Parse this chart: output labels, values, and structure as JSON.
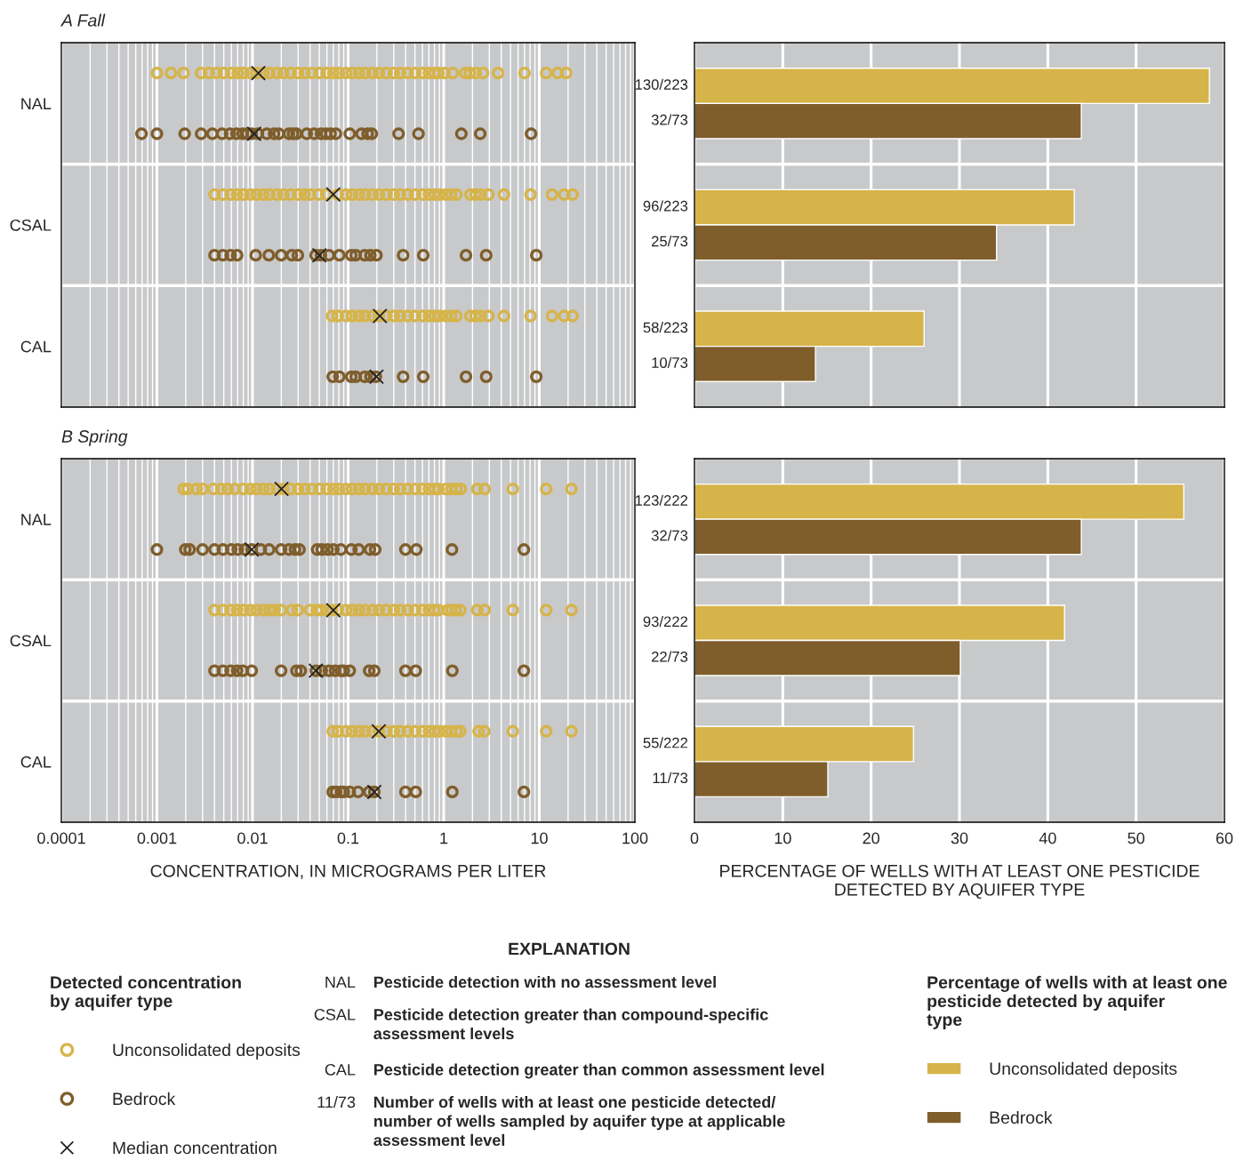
{
  "chart_data": [
    {
      "type": "scatter",
      "title": "A Fall",
      "orientation": "horizontal",
      "log": "x",
      "grid": "x",
      "tick_labels": "y",
      "legend": "bottom left",
      "legend_title": "Detected concentration\nby aquifer type",
      "categories": [
        "NAL",
        "CSAL",
        "CAL"
      ],
      "xlim": [
        0.0001,
        100
      ],
      "xticks": [
        0.0001,
        0.001,
        0.01,
        0.1,
        1,
        10,
        100
      ],
      "series": [
        {
          "name": "Unconsolidated deposits",
          "color": "#d6b44a",
          "marker": "circle",
          "values": [
            0.001,
            0.0014,
            0.0019,
            0.0029,
            0.0035,
            0.0042,
            0.005,
            0.006,
            0.007,
            0.008,
            0.0095,
            0.011,
            0.013,
            0.015,
            0.018,
            0.021,
            0.025,
            0.03,
            0.035,
            0.042,
            0.05,
            0.06,
            0.07,
            0.08,
            0.095,
            0.11,
            0.13,
            0.15,
            0.18,
            0.21,
            0.25,
            0.3,
            0.35,
            0.42,
            0.5,
            0.6,
            0.7,
            0.8,
            0.88,
            1.02,
            1.24,
            1.68,
            1.87,
            2.16,
            2.58,
            3.7,
            7.0,
            11.8,
            15.6,
            19.1,
            0.004,
            0.0049,
            0.0059,
            0.0069,
            0.008,
            0.0095,
            0.011,
            0.013,
            0.015,
            0.018,
            0.021,
            0.025,
            0.03,
            0.035,
            0.04,
            0.049,
            0.059,
            0.078,
            0.095,
            0.11,
            0.13,
            0.15,
            0.18,
            0.21,
            0.25,
            0.3,
            0.35,
            0.42,
            0.5,
            0.6,
            0.7,
            0.8,
            0.9,
            1.05,
            1.2,
            1.36,
            1.9,
            2.16,
            2.44,
            2.94,
            4.27,
            8.1,
            13.6,
            18.2,
            22.3,
            0.068,
            0.078,
            0.095,
            0.11,
            0.13,
            0.15,
            0.18,
            0.21,
            0.25,
            0.3,
            0.35,
            0.42,
            0.5,
            0.6,
            0.7,
            0.8,
            0.9,
            1.05,
            1.2,
            1.36,
            1.9,
            2.16,
            2.44,
            2.94,
            4.27,
            8.1,
            13.6,
            18.2,
            22.3
          ],
          "x": [
            "NAL",
            "NAL",
            "NAL",
            "NAL",
            "NAL",
            "NAL",
            "NAL",
            "NAL",
            "NAL",
            "NAL",
            "NAL",
            "NAL",
            "NAL",
            "NAL",
            "NAL",
            "NAL",
            "NAL",
            "NAL",
            "NAL",
            "NAL",
            "NAL",
            "NAL",
            "NAL",
            "NAL",
            "NAL",
            "NAL",
            "NAL",
            "NAL",
            "NAL",
            "NAL",
            "NAL",
            "NAL",
            "NAL",
            "NAL",
            "NAL",
            "NAL",
            "NAL",
            "NAL",
            "NAL",
            "NAL",
            "NAL",
            "NAL",
            "NAL",
            "NAL",
            "NAL",
            "NAL",
            "NAL",
            "NAL",
            "NAL",
            "NAL",
            "CSAL",
            "CSAL",
            "CSAL",
            "CSAL",
            "CSAL",
            "CSAL",
            "CSAL",
            "CSAL",
            "CSAL",
            "CSAL",
            "CSAL",
            "CSAL",
            "CSAL",
            "CSAL",
            "CSAL",
            "CSAL",
            "CSAL",
            "CSAL",
            "CSAL",
            "CSAL",
            "CSAL",
            "CSAL",
            "CSAL",
            "CSAL",
            "CSAL",
            "CSAL",
            "CSAL",
            "CSAL",
            "CSAL",
            "CSAL",
            "CSAL",
            "CSAL",
            "CSAL",
            "CSAL",
            "CSAL",
            "CSAL",
            "CSAL",
            "CSAL",
            "CSAL",
            "CSAL",
            "CSAL",
            "CSAL",
            "CSAL",
            "CSAL",
            "CSAL",
            "CAL",
            "CAL",
            "CAL",
            "CAL",
            "CAL",
            "CAL",
            "CAL",
            "CAL",
            "CAL",
            "CAL",
            "CAL",
            "CAL",
            "CAL",
            "CAL",
            "CAL",
            "CAL",
            "CAL",
            "CAL",
            "CAL",
            "CAL",
            "CAL",
            "CAL",
            "CAL",
            "CAL",
            "CAL",
            "CAL",
            "CAL",
            "CAL",
            "CAL"
          ]
        },
        {
          "name": "Bedrock",
          "color": "#7f5e2c",
          "marker": "circle",
          "values": [
            0.00069,
            0.001,
            0.00195,
            0.0029,
            0.0038,
            0.0048,
            0.0058,
            0.0068,
            0.0079,
            0.0088,
            0.0098,
            0.0114,
            0.0141,
            0.0168,
            0.0188,
            0.024,
            0.0265,
            0.0288,
            0.0369,
            0.0441,
            0.052,
            0.0588,
            0.0655,
            0.0745,
            0.104,
            0.138,
            0.16,
            0.177,
            0.337,
            0.545,
            1.53,
            2.41,
            8.2,
            0.004,
            0.0049,
            0.0059,
            0.0069,
            0.0108,
            0.0148,
            0.0199,
            0.0258,
            0.0298,
            0.0457,
            0.052,
            0.063,
            0.081,
            0.108,
            0.12,
            0.149,
            0.171,
            0.198,
            0.376,
            0.611,
            1.71,
            2.78,
            9.3,
            0.069,
            0.081,
            0.108,
            0.12,
            0.149,
            0.171,
            0.195,
            0.376,
            0.611,
            1.71,
            2.78,
            9.3
          ],
          "x": [
            "NAL",
            "NAL",
            "NAL",
            "NAL",
            "NAL",
            "NAL",
            "NAL",
            "NAL",
            "NAL",
            "NAL",
            "NAL",
            "NAL",
            "NAL",
            "NAL",
            "NAL",
            "NAL",
            "NAL",
            "NAL",
            "NAL",
            "NAL",
            "NAL",
            "NAL",
            "NAL",
            "NAL",
            "NAL",
            "NAL",
            "NAL",
            "NAL",
            "NAL",
            "NAL",
            "NAL",
            "NAL",
            "NAL",
            "CSAL",
            "CSAL",
            "CSAL",
            "CSAL",
            "CSAL",
            "CSAL",
            "CSAL",
            "CSAL",
            "CSAL",
            "CSAL",
            "CSAL",
            "CSAL",
            "CSAL",
            "CSAL",
            "CSAL",
            "CSAL",
            "CSAL",
            "CSAL",
            "CSAL",
            "CSAL",
            "CSAL",
            "CSAL",
            "CSAL",
            "CAL",
            "CAL",
            "CAL",
            "CAL",
            "CAL",
            "CAL",
            "CAL",
            "CAL",
            "CAL",
            "CAL",
            "CAL",
            "CAL"
          ]
        },
        {
          "name": "Median concentration",
          "color": "#222222",
          "marker": "cross",
          "values": [
            0.0115,
            0.07,
            0.215
          ],
          "x": [
            "NAL",
            "CSAL",
            "CAL"
          ]
        },
        {
          "color": "#222222",
          "marker": "cross",
          "values": [
            0.0104,
            0.05,
            0.198
          ],
          "x": [
            "NAL",
            "CSAL",
            "CAL"
          ]
        }
      ]
    },
    {
      "type": "bar",
      "orientation": "horizontal",
      "grid": "x",
      "tick_labels": false,
      "legend": "bottom right",
      "legend_title": "Percentage of wells with at least one\npesticide detected by aquifer\ntype",
      "categories": [
        null,
        null,
        null
      ],
      "xlim": [
        0,
        60
      ],
      "xticks": [
        0,
        10,
        20,
        30,
        40,
        50,
        60
      ],
      "series": [
        {
          "name": "Unconsolidated deposits",
          "color": "#d6b44a",
          "values": [
            58.3,
            43.0,
            26.0
          ],
          "value_labels": [
            "130/223",
            "96/223",
            "58/223"
          ]
        },
        {
          "name": "Bedrock",
          "color": "#7f5e2c",
          "values": [
            43.8,
            34.2,
            13.7
          ],
          "value_labels": [
            "32/73",
            "25/73",
            "10/73"
          ]
        }
      ]
    },
    {
      "type": "scatter",
      "title": "B Spring",
      "orientation": "horizontal",
      "log": "x",
      "grid": "x",
      "xlabel": "CONCENTRATION, IN MICROGRAMS PER LITER",
      "categories": [
        "NAL",
        "CSAL",
        "CAL"
      ],
      "xlim": [
        0.0001,
        100
      ],
      "xticks": [
        0.0001,
        0.001,
        0.01,
        0.1,
        1,
        10,
        100
      ],
      "series": [
        {
          "color": "#d6b44a",
          "marker": "circle",
          "values": [
            0.0019,
            0.0021,
            0.0026,
            0.003,
            0.0039,
            0.0047,
            0.0055,
            0.0065,
            0.008,
            0.0095,
            0.011,
            0.013,
            0.015,
            0.018,
            0.021,
            0.025,
            0.03,
            0.035,
            0.042,
            0.05,
            0.06,
            0.07,
            0.08,
            0.095,
            0.11,
            0.13,
            0.15,
            0.18,
            0.21,
            0.25,
            0.3,
            0.35,
            0.42,
            0.5,
            0.6,
            0.7,
            0.8,
            0.88,
            1.05,
            1.2,
            1.36,
            1.51,
            2.24,
            2.68,
            5.28,
            11.8,
            21.7,
            0.004,
            0.0049,
            0.0059,
            0.0069,
            0.008,
            0.0095,
            0.011,
            0.013,
            0.015,
            0.017,
            0.0199,
            0.0258,
            0.0298,
            0.04,
            0.047,
            0.052,
            0.06,
            0.068,
            0.078,
            0.095,
            0.11,
            0.13,
            0.15,
            0.18,
            0.21,
            0.25,
            0.3,
            0.35,
            0.42,
            0.5,
            0.6,
            0.7,
            0.8,
            0.88,
            1.1,
            1.2,
            1.33,
            1.49,
            2.24,
            2.68,
            5.28,
            11.8,
            21.7,
            0.069,
            0.078,
            0.095,
            0.11,
            0.13,
            0.15,
            0.18,
            0.21,
            0.25,
            0.3,
            0.35,
            0.42,
            0.5,
            0.6,
            0.7,
            0.8,
            0.9,
            1.05,
            1.2,
            1.36,
            1.49,
            2.32,
            2.66,
            5.28,
            11.8,
            21.7
          ],
          "x": [
            "NAL",
            "NAL",
            "NAL",
            "NAL",
            "NAL",
            "NAL",
            "NAL",
            "NAL",
            "NAL",
            "NAL",
            "NAL",
            "NAL",
            "NAL",
            "NAL",
            "NAL",
            "NAL",
            "NAL",
            "NAL",
            "NAL",
            "NAL",
            "NAL",
            "NAL",
            "NAL",
            "NAL",
            "NAL",
            "NAL",
            "NAL",
            "NAL",
            "NAL",
            "NAL",
            "NAL",
            "NAL",
            "NAL",
            "NAL",
            "NAL",
            "NAL",
            "NAL",
            "NAL",
            "NAL",
            "NAL",
            "NAL",
            "NAL",
            "NAL",
            "NAL",
            "NAL",
            "NAL",
            "NAL",
            "CSAL",
            "CSAL",
            "CSAL",
            "CSAL",
            "CSAL",
            "CSAL",
            "CSAL",
            "CSAL",
            "CSAL",
            "CSAL",
            "CSAL",
            "CSAL",
            "CSAL",
            "CSAL",
            "CSAL",
            "CSAL",
            "CSAL",
            "CSAL",
            "CSAL",
            "CSAL",
            "CSAL",
            "CSAL",
            "CSAL",
            "CSAL",
            "CSAL",
            "CSAL",
            "CSAL",
            "CSAL",
            "CSAL",
            "CSAL",
            "CSAL",
            "CSAL",
            "CSAL",
            "CSAL",
            "CSAL",
            "CSAL",
            "CSAL",
            "CSAL",
            "CSAL",
            "CSAL",
            "CSAL",
            "CSAL",
            "CSAL",
            "CAL",
            "CAL",
            "CAL",
            "CAL",
            "CAL",
            "CAL",
            "CAL",
            "CAL",
            "CAL",
            "CAL",
            "CAL",
            "CAL",
            "CAL",
            "CAL",
            "CAL",
            "CAL",
            "CAL",
            "CAL",
            "CAL",
            "CAL",
            "CAL",
            "CAL",
            "CAL",
            "CAL",
            "CAL",
            "CAL"
          ]
        },
        {
          "color": "#7f5e2c",
          "marker": "circle",
          "values": [
            0.001,
            0.00198,
            0.0022,
            0.003,
            0.004,
            0.0049,
            0.006,
            0.007,
            0.0083,
            0.0098,
            0.0122,
            0.0149,
            0.0199,
            0.024,
            0.0278,
            0.031,
            0.0474,
            0.053,
            0.061,
            0.07,
            0.084,
            0.108,
            0.129,
            0.169,
            0.192,
            0.398,
            0.518,
            1.22,
            6.9,
            0.004,
            0.0049,
            0.0059,
            0.0069,
            0.0079,
            0.0098,
            0.0199,
            0.0288,
            0.032,
            0.046,
            0.053,
            0.063,
            0.073,
            0.084,
            0.09,
            0.104,
            0.166,
            0.188,
            0.398,
            0.51,
            1.23,
            6.9,
            0.069,
            0.075,
            0.084,
            0.09,
            0.104,
            0.127,
            0.166,
            0.188,
            0.398,
            0.51,
            1.23,
            6.9
          ],
          "x": [
            "NAL",
            "NAL",
            "NAL",
            "NAL",
            "NAL",
            "NAL",
            "NAL",
            "NAL",
            "NAL",
            "NAL",
            "NAL",
            "NAL",
            "NAL",
            "NAL",
            "NAL",
            "NAL",
            "NAL",
            "NAL",
            "NAL",
            "NAL",
            "NAL",
            "NAL",
            "NAL",
            "NAL",
            "NAL",
            "NAL",
            "NAL",
            "NAL",
            "NAL",
            "CSAL",
            "CSAL",
            "CSAL",
            "CSAL",
            "CSAL",
            "CSAL",
            "CSAL",
            "CSAL",
            "CSAL",
            "CSAL",
            "CSAL",
            "CSAL",
            "CSAL",
            "CSAL",
            "CSAL",
            "CSAL",
            "CSAL",
            "CSAL",
            "CSAL",
            "CSAL",
            "CSAL",
            "CSAL",
            "CAL",
            "CAL",
            "CAL",
            "CAL",
            "CAL",
            "CAL",
            "CAL",
            "CAL",
            "CAL",
            "CAL",
            "CAL",
            "CAL"
          ]
        },
        {
          "color": "#222222",
          "marker": "cross",
          "values": [
            0.0201,
            0.07,
            0.209
          ],
          "x": [
            "NAL",
            "CSAL",
            "CAL"
          ]
        },
        {
          "color": "#222222",
          "marker": "cross",
          "values": [
            0.0098,
            0.046,
            0.188
          ],
          "x": [
            "NAL",
            "CSAL",
            "CAL"
          ]
        }
      ]
    },
    {
      "type": "bar",
      "orientation": "horizontal",
      "grid": "x",
      "tick_labels": "x",
      "xlabel": "PERCENTAGE OF WELLS WITH AT LEAST ONE PESTICIDE\nDETECTED BY AQUIFER TYPE",
      "categories": [
        null,
        null,
        null
      ],
      "xlim": [
        0,
        60
      ],
      "xticks": [
        0,
        10,
        20,
        30,
        40,
        50,
        60
      ],
      "series": [
        {
          "color": "#d6b44a",
          "values": [
            55.4,
            41.9,
            24.8
          ],
          "value_labels": [
            "123/222",
            "93/222",
            "55/222"
          ]
        },
        {
          "color": "#7f5e2c",
          "values": [
            43.8,
            30.1,
            15.1
          ],
          "value_labels": [
            "32/73",
            "22/73",
            "11/73"
          ]
        }
      ]
    },
    {
      "type": "other",
      "title": "EXPLANATION",
      "annotations": [
        "NAL",
        "Pesticide detection with no assessment level",
        "CSAL",
        "Pesticide detection greater than compound-specific\nassessment levels",
        "CAL",
        "Pesticide detection greater than common assessment level",
        "11/73",
        "Number of wells with at least one pesticide detected/\nnumber of wells sampled by aquifer type at applicable\nassessment level"
      ]
    }
  ]
}
